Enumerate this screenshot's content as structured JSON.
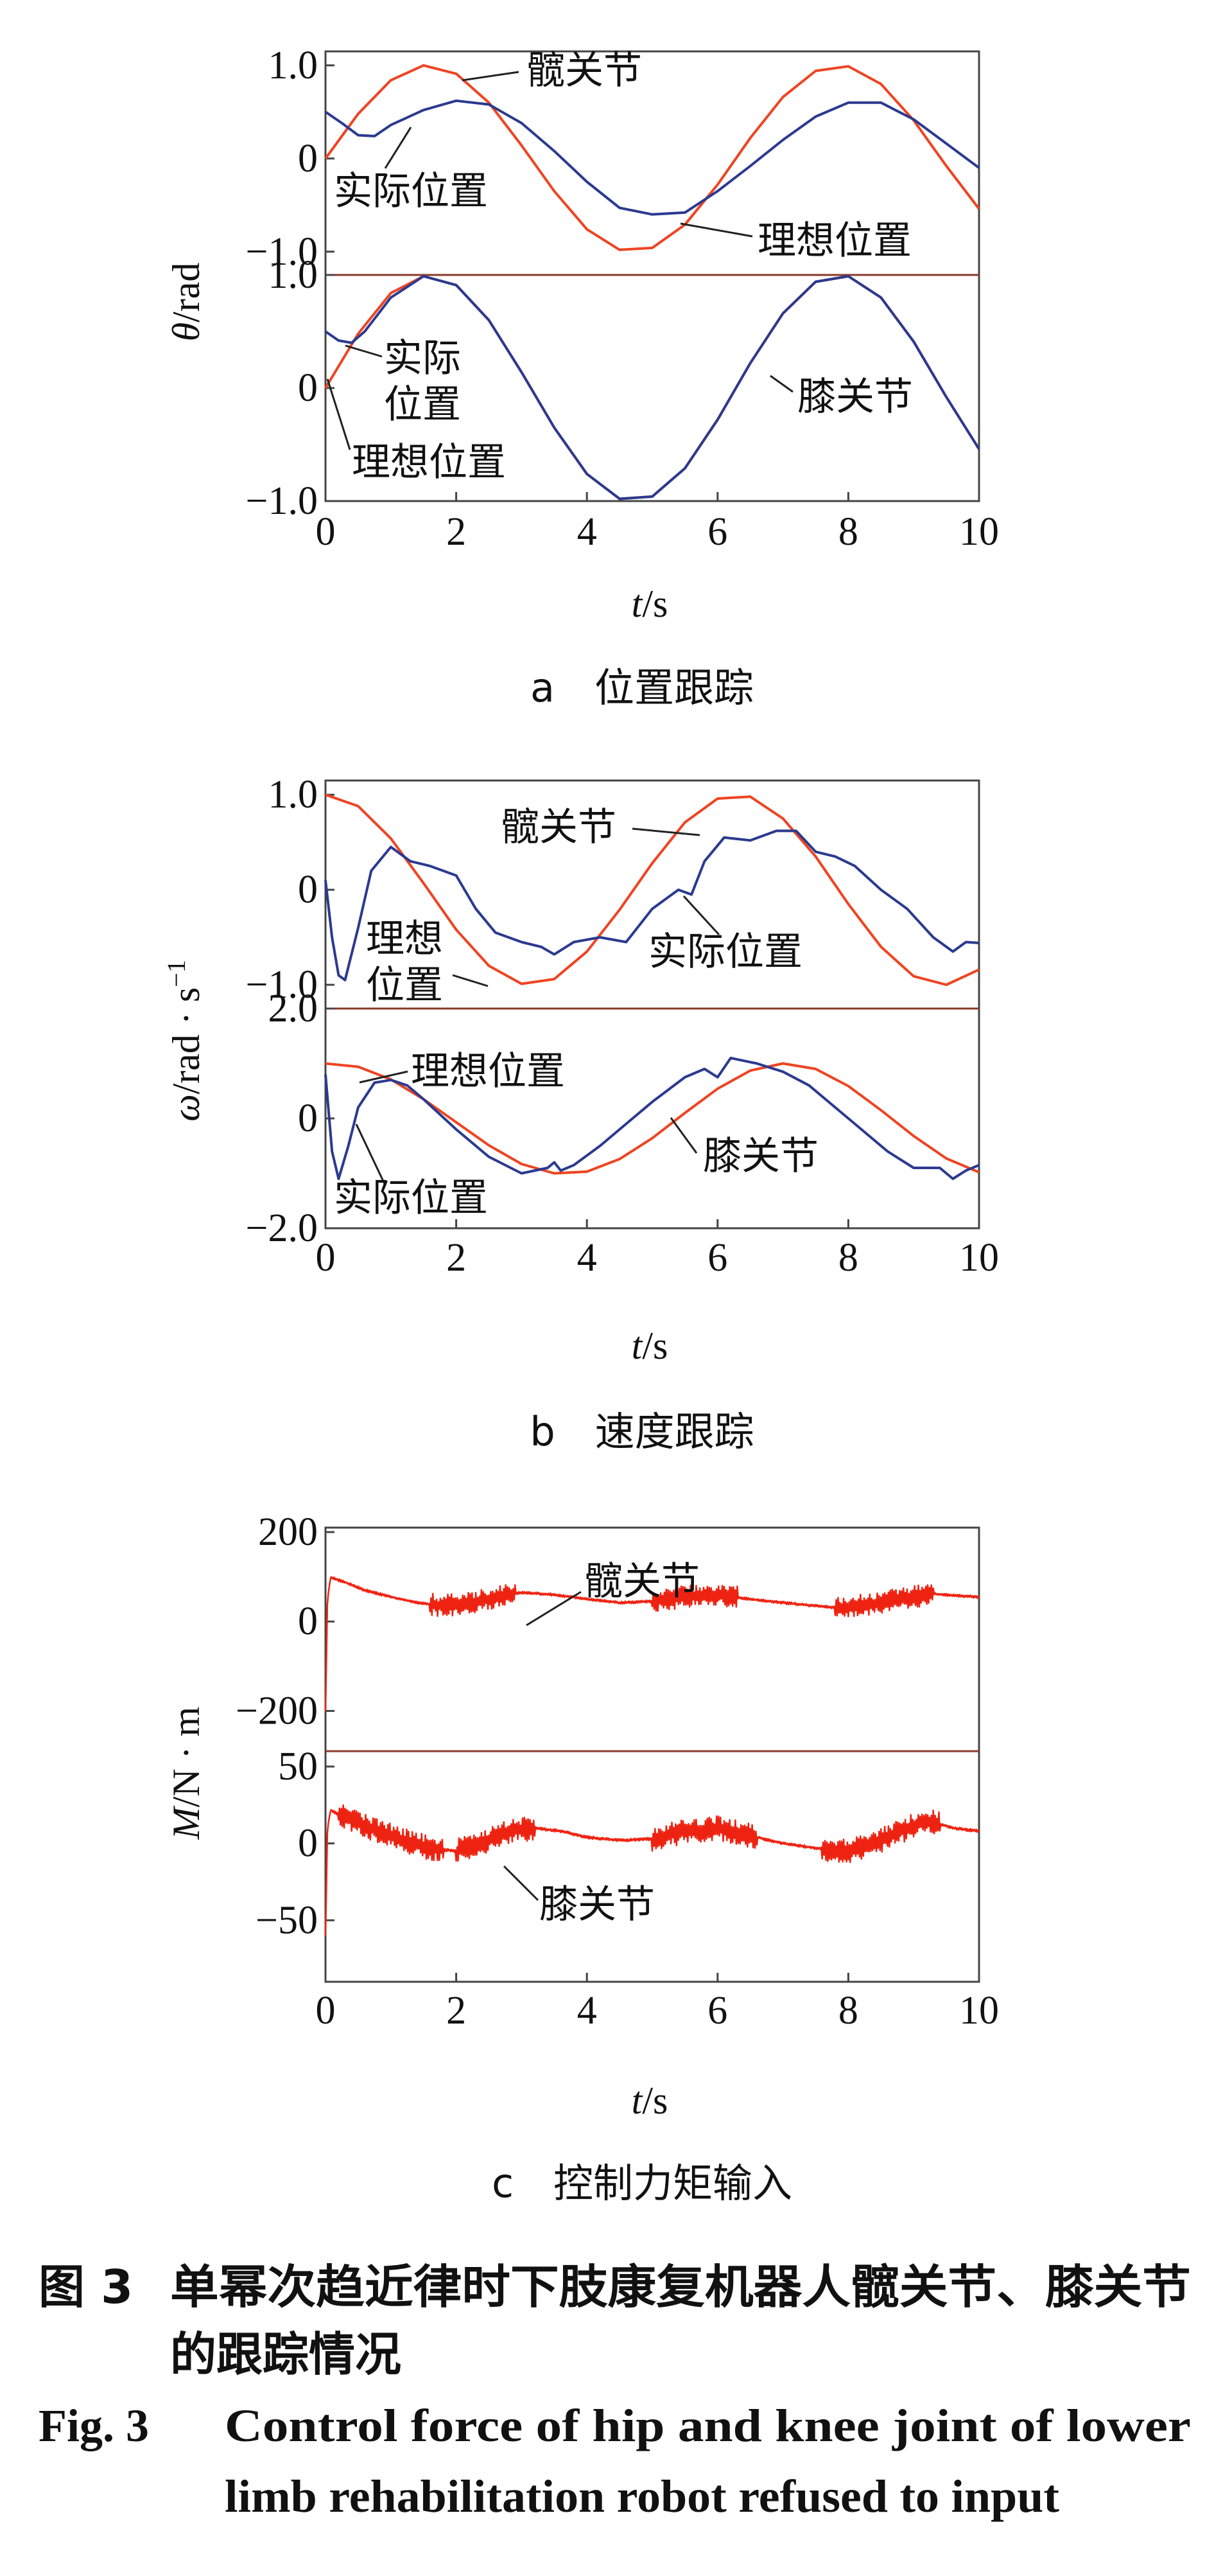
{
  "caption": {
    "cn_label": "图 3",
    "cn_line1": "单幂次趋近律时下肢康复机器人髋关节、膝关节",
    "cn_line2": "的跟踪情况",
    "en_label": "Fig. 3",
    "en_line1": "Control force of hip and knee joint of lower",
    "en_line2": "limb rehabilitation robot refused to input"
  },
  "chart_data": [
    {
      "id": "a",
      "type": "line",
      "subtitle": "a　位置跟踪",
      "xlabel_italic": "t",
      "xlabel_rest": "/s",
      "ylabel_italic": "θ",
      "ylabel_rest": "/rad",
      "xlim": [
        0,
        10
      ],
      "x_ticks": [
        "0",
        "2",
        "4",
        "6",
        "8",
        "10"
      ],
      "panels": [
        {
          "name": "髋关节",
          "ylim": [
            -1.25,
            1.15
          ],
          "y_ticks": [
            {
              "v": 1,
              "label": "1.0"
            },
            {
              "v": 0,
              "label": "0"
            },
            {
              "v": -1,
              "label": "−1.0"
            }
          ],
          "series": [
            {
              "name": "理想位置",
              "color": "#ee4422",
              "x": [
                0,
                0.5,
                1,
                1.5,
                2,
                2.5,
                3,
                3.5,
                4,
                4.5,
                5,
                5.5,
                6,
                6.5,
                7,
                7.5,
                8,
                8.5,
                9,
                9.5,
                10
              ],
              "y": [
                0,
                0.48,
                0.84,
                1.0,
                0.91,
                0.6,
                0.14,
                -0.35,
                -0.76,
                -0.98,
                -0.96,
                -0.71,
                -0.28,
                0.22,
                0.66,
                0.94,
                0.99,
                0.8,
                0.41,
                -0.08,
                -0.54
              ]
            },
            {
              "name": "实际位置",
              "color": "#2b3a8f",
              "x": [
                0,
                0.25,
                0.5,
                0.75,
                1,
                1.5,
                2,
                2.5,
                3,
                3.5,
                4,
                4.5,
                5,
                5.5,
                6,
                6.5,
                7,
                7.5,
                8,
                8.5,
                9,
                9.5,
                10
              ],
              "y": [
                0.5,
                0.38,
                0.25,
                0.24,
                0.36,
                0.52,
                0.62,
                0.58,
                0.38,
                0.08,
                -0.25,
                -0.53,
                -0.6,
                -0.58,
                -0.35,
                -0.08,
                0.2,
                0.45,
                0.6,
                0.6,
                0.42,
                0.16,
                -0.1
              ]
            }
          ],
          "annotations": [
            {
              "text": "髋关节"
            },
            {
              "text": "实际位置"
            },
            {
              "text": "理想位置"
            }
          ]
        },
        {
          "name": "膝关节",
          "ylim": [
            -1.0,
            1.0
          ],
          "y_ticks": [
            {
              "v": 1,
              "label": "1.0"
            },
            {
              "v": 0,
              "label": "0"
            },
            {
              "v": -1,
              "label": "−1.0"
            }
          ],
          "series": [
            {
              "name": "理想位置",
              "color": "#ee4422",
              "x": [
                0,
                0.5,
                1,
                1.5,
                2,
                2.5,
                3,
                3.5,
                4,
                4.5,
                5,
                5.5,
                6,
                6.5,
                7,
                7.5,
                8,
                8.5,
                9,
                9.5,
                10
              ],
              "y": [
                0,
                0.48,
                0.84,
                1.0,
                0.91,
                0.6,
                0.14,
                -0.35,
                -0.76,
                -0.98,
                -0.96,
                -0.71,
                -0.28,
                0.22,
                0.66,
                0.94,
                0.99,
                0.8,
                0.41,
                -0.08,
                -0.54
              ]
            },
            {
              "name": "实际位置",
              "color": "#2b3a8f",
              "x": [
                0,
                0.2,
                0.4,
                0.6,
                1,
                1.5,
                2,
                2.5,
                3,
                3.5,
                4,
                4.5,
                5,
                5.5,
                6,
                6.5,
                7,
                7.5,
                8,
                8.5,
                9,
                9.5,
                10
              ],
              "y": [
                0.5,
                0.42,
                0.4,
                0.5,
                0.8,
                0.99,
                0.91,
                0.6,
                0.14,
                -0.35,
                -0.76,
                -0.98,
                -0.96,
                -0.71,
                -0.28,
                0.22,
                0.66,
                0.94,
                0.99,
                0.8,
                0.41,
                -0.08,
                -0.54
              ]
            }
          ],
          "annotations": [
            {
              "text": "实际"
            },
            {
              "text": "位置"
            },
            {
              "text": "理想位置"
            },
            {
              "text": "膝关节"
            }
          ]
        }
      ]
    },
    {
      "id": "b",
      "type": "line",
      "subtitle": "b　速度跟踪",
      "xlabel_italic": "t",
      "xlabel_rest": "/s",
      "ylabel_italic": "ω",
      "ylabel_rest": "/rad · s",
      "ylabel_sup": "−1",
      "xlim": [
        0,
        10
      ],
      "x_ticks": [
        "0",
        "2",
        "4",
        "6",
        "8",
        "10"
      ],
      "panels": [
        {
          "name": "髋关节",
          "ylim": [
            -1.25,
            1.15
          ],
          "y_ticks": [
            {
              "v": 1,
              "label": "1.0"
            },
            {
              "v": 0,
              "label": "0"
            },
            {
              "v": -1,
              "label": "−1.0"
            }
          ],
          "series": [
            {
              "name": "理想位置",
              "color": "#ee4422",
              "x": [
                0,
                0.5,
                1,
                1.5,
                2,
                2.5,
                3,
                3.5,
                4,
                4.5,
                5,
                5.5,
                6,
                6.5,
                7,
                7.5,
                8,
                8.5,
                9,
                9.5,
                10
              ],
              "y": [
                1.0,
                0.88,
                0.54,
                0.07,
                -0.42,
                -0.8,
                -0.99,
                -0.94,
                -0.65,
                -0.21,
                0.28,
                0.71,
                0.96,
                0.98,
                0.75,
                0.35,
                -0.15,
                -0.6,
                -0.91,
                -1.0,
                -0.84
              ]
            },
            {
              "name": "实际位置",
              "color": "#2b3a8f",
              "x": [
                0,
                0.1,
                0.2,
                0.3,
                0.5,
                0.7,
                1,
                1.3,
                1.6,
                2,
                2.3,
                2.6,
                3,
                3.3,
                3.5,
                3.8,
                4.2,
                4.6,
                5,
                5.4,
                5.6,
                5.8,
                6.1,
                6.5,
                6.9,
                7.2,
                7.5,
                7.8,
                8.1,
                8.5,
                8.9,
                9.3,
                9.6,
                9.8,
                10
              ],
              "y": [
                0.1,
                -0.5,
                -0.9,
                -0.95,
                -0.4,
                0.2,
                0.45,
                0.3,
                0.25,
                0.15,
                -0.2,
                -0.45,
                -0.55,
                -0.6,
                -0.68,
                -0.55,
                -0.5,
                -0.55,
                -0.2,
                0.0,
                -0.05,
                0.3,
                0.55,
                0.52,
                0.62,
                0.62,
                0.4,
                0.35,
                0.25,
                0.0,
                -0.2,
                -0.5,
                -0.65,
                -0.55,
                -0.56
              ]
            }
          ],
          "annotations": [
            {
              "text": "髋关节"
            },
            {
              "text": "理想"
            },
            {
              "text": "位置"
            },
            {
              "text": "实际位置"
            }
          ]
        },
        {
          "name": "膝关节",
          "ylim": [
            -2.0,
            2.0
          ],
          "y_ticks": [
            {
              "v": 2,
              "label": "2.0"
            },
            {
              "v": 0,
              "label": "0"
            },
            {
              "v": -2,
              "label": "−2.0"
            }
          ],
          "series": [
            {
              "name": "理想位置",
              "color": "#ee4422",
              "x": [
                0,
                0.5,
                1,
                1.5,
                2,
                2.5,
                3,
                3.5,
                4,
                4.5,
                5,
                5.5,
                6,
                6.5,
                7,
                7.5,
                8,
                8.5,
                9,
                9.5,
                10
              ],
              "y": [
                1.0,
                0.94,
                0.71,
                0.35,
                -0.07,
                -0.49,
                -0.83,
                -1.0,
                -0.97,
                -0.74,
                -0.36,
                0.1,
                0.54,
                0.87,
                1.0,
                0.9,
                0.59,
                0.15,
                -0.32,
                -0.73,
                -0.98
              ]
            },
            {
              "name": "实际位置",
              "color": "#2b3a8f",
              "x": [
                0,
                0.1,
                0.2,
                0.35,
                0.5,
                0.75,
                1,
                1.25,
                1.5,
                2,
                2.5,
                3,
                3.4,
                3.5,
                3.6,
                3.8,
                4.2,
                4.6,
                5,
                5.5,
                5.8,
                6.0,
                6.2,
                6.6,
                7.0,
                7.4,
                7.8,
                8.2,
                8.6,
                9.0,
                9.4,
                9.6,
                9.8,
                10
              ],
              "y": [
                0.8,
                -0.6,
                -1.1,
                -0.5,
                0.2,
                0.65,
                0.7,
                0.6,
                0.35,
                -0.2,
                -0.7,
                -1.0,
                -0.9,
                -0.8,
                -0.95,
                -0.85,
                -0.5,
                -0.1,
                0.3,
                0.75,
                0.9,
                0.75,
                1.1,
                1.0,
                0.85,
                0.6,
                0.2,
                -0.2,
                -0.6,
                -0.9,
                -0.9,
                -1.1,
                -0.95,
                -0.85
              ]
            }
          ],
          "annotations": [
            {
              "text": "理想位置"
            },
            {
              "text": "实际位置"
            },
            {
              "text": "膝关节"
            }
          ]
        }
      ]
    },
    {
      "id": "c",
      "type": "line",
      "subtitle": "c　控制力矩输入",
      "xlabel_italic": "t",
      "xlabel_rest": "/s",
      "ylabel_italic": "M",
      "ylabel_rest": "/N · m",
      "xlim": [
        0,
        10
      ],
      "x_ticks": [
        "0",
        "2",
        "4",
        "6",
        "8",
        "10"
      ],
      "panels": [
        {
          "name": "髋关节",
          "ylim": [
            -290,
            210
          ],
          "y_ticks": [
            {
              "v": 200,
              "label": "200"
            },
            {
              "v": 0,
              "label": "0"
            },
            {
              "v": -200,
              "label": "−200"
            }
          ],
          "series": [
            {
              "name": "髋关节",
              "color": "#ee2211",
              "x": [
                0,
                0.03,
                0.08,
                0.15,
                0.3,
                0.6,
                1.0,
                1.4,
                1.8,
                2.2,
                2.6,
                3.0,
                3.5,
                4.0,
                4.5,
                5.0,
                5.5,
                6.0,
                6.5,
                7.0,
                7.5,
                7.9,
                8.3,
                8.7,
                9.0,
                9.3,
                9.6,
                10
              ],
              "y": [
                -200,
                50,
                100,
                95,
                88,
                70,
                55,
                42,
                35,
                40,
                55,
                65,
                60,
                50,
                42,
                45,
                55,
                60,
                50,
                42,
                35,
                30,
                38,
                48,
                55,
                62,
                58,
                55
              ],
              "noise_ranges": [
                [
                  1.6,
                  2.9
                ],
                [
                  5.0,
                  6.3
                ],
                [
                  7.8,
                  9.3
                ]
              ],
              "noise_amplitude": 25
            }
          ],
          "annotations": [
            {
              "text": "髋关节"
            }
          ]
        },
        {
          "name": "膝关节",
          "ylim": [
            -90,
            60
          ],
          "y_ticks": [
            {
              "v": 50,
              "label": "50"
            },
            {
              "v": 0,
              "label": "0"
            },
            {
              "v": -50,
              "label": "−50"
            }
          ],
          "series": [
            {
              "name": "膝关节",
              "color": "#ee2211",
              "x": [
                0,
                0.03,
                0.08,
                0.15,
                0.4,
                0.8,
                1.2,
                1.6,
                2.0,
                2.4,
                2.8,
                3.2,
                3.6,
                4.0,
                4.5,
                5.0,
                5.5,
                6.0,
                6.5,
                7.0,
                7.5,
                8.0,
                8.4,
                8.8,
                9.2,
                9.6,
                10
              ],
              "y": [
                -60,
                10,
                22,
                20,
                15,
                8,
                2,
                -3,
                -5,
                0,
                8,
                10,
                8,
                4,
                2,
                3,
                8,
                10,
                5,
                0,
                -3,
                -5,
                0,
                8,
                15,
                10,
                8
              ],
              "noise_ranges": [
                [
                  0.2,
                  1.8
                ],
                [
                  2.0,
                  3.2
                ],
                [
                  5.0,
                  6.6
                ],
                [
                  7.6,
                  9.4
                ]
              ],
              "noise_amplitude": 8
            }
          ],
          "annotations": [
            {
              "text": "膝关节"
            }
          ]
        }
      ]
    }
  ]
}
